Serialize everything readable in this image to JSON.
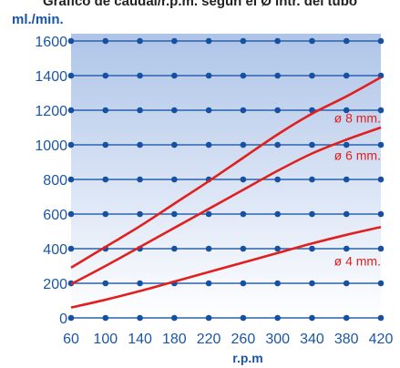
{
  "title": "Gráfico de caudal/r.p.m. según el Ø intr. del tubo",
  "colors": {
    "axis_text": "#1b56a5",
    "grid": "#2a62ad",
    "dot": "#1750a0",
    "curve": "#e0201f",
    "bg_top": "#aec4e8",
    "bg_bottom": "#ffffff"
  },
  "chart_data": {
    "type": "line",
    "title": "Gráfico de caudal/r.p.m. según el Ø intr. del tubo",
    "xlabel": "r.p.m",
    "ylabel": "ml./min.",
    "xlim": [
      60,
      420
    ],
    "ylim": [
      0,
      1600
    ],
    "xticks": [
      60,
      100,
      140,
      180,
      220,
      260,
      300,
      340,
      380,
      420
    ],
    "yticks": [
      0,
      200,
      400,
      600,
      800,
      1000,
      1200,
      1400,
      1600
    ],
    "grid": "horizontal",
    "series": [
      {
        "name": "ø 8 mm.",
        "x": [
          60,
          100,
          140,
          180,
          220,
          260,
          300,
          340,
          380,
          420
        ],
        "y": [
          290,
          410,
          530,
          660,
          790,
          925,
          1060,
          1180,
          1280,
          1390
        ]
      },
      {
        "name": "ø 6 mm.",
        "x": [
          60,
          100,
          140,
          180,
          220,
          260,
          300,
          340,
          380,
          420
        ],
        "y": [
          195,
          300,
          410,
          520,
          630,
          740,
          850,
          950,
          1030,
          1100
        ]
      },
      {
        "name": "ø 4 mm.",
        "x": [
          60,
          100,
          140,
          180,
          220,
          260,
          300,
          340,
          380,
          420
        ],
        "y": [
          60,
          105,
          155,
          210,
          265,
          320,
          375,
          430,
          480,
          525
        ]
      }
    ]
  }
}
